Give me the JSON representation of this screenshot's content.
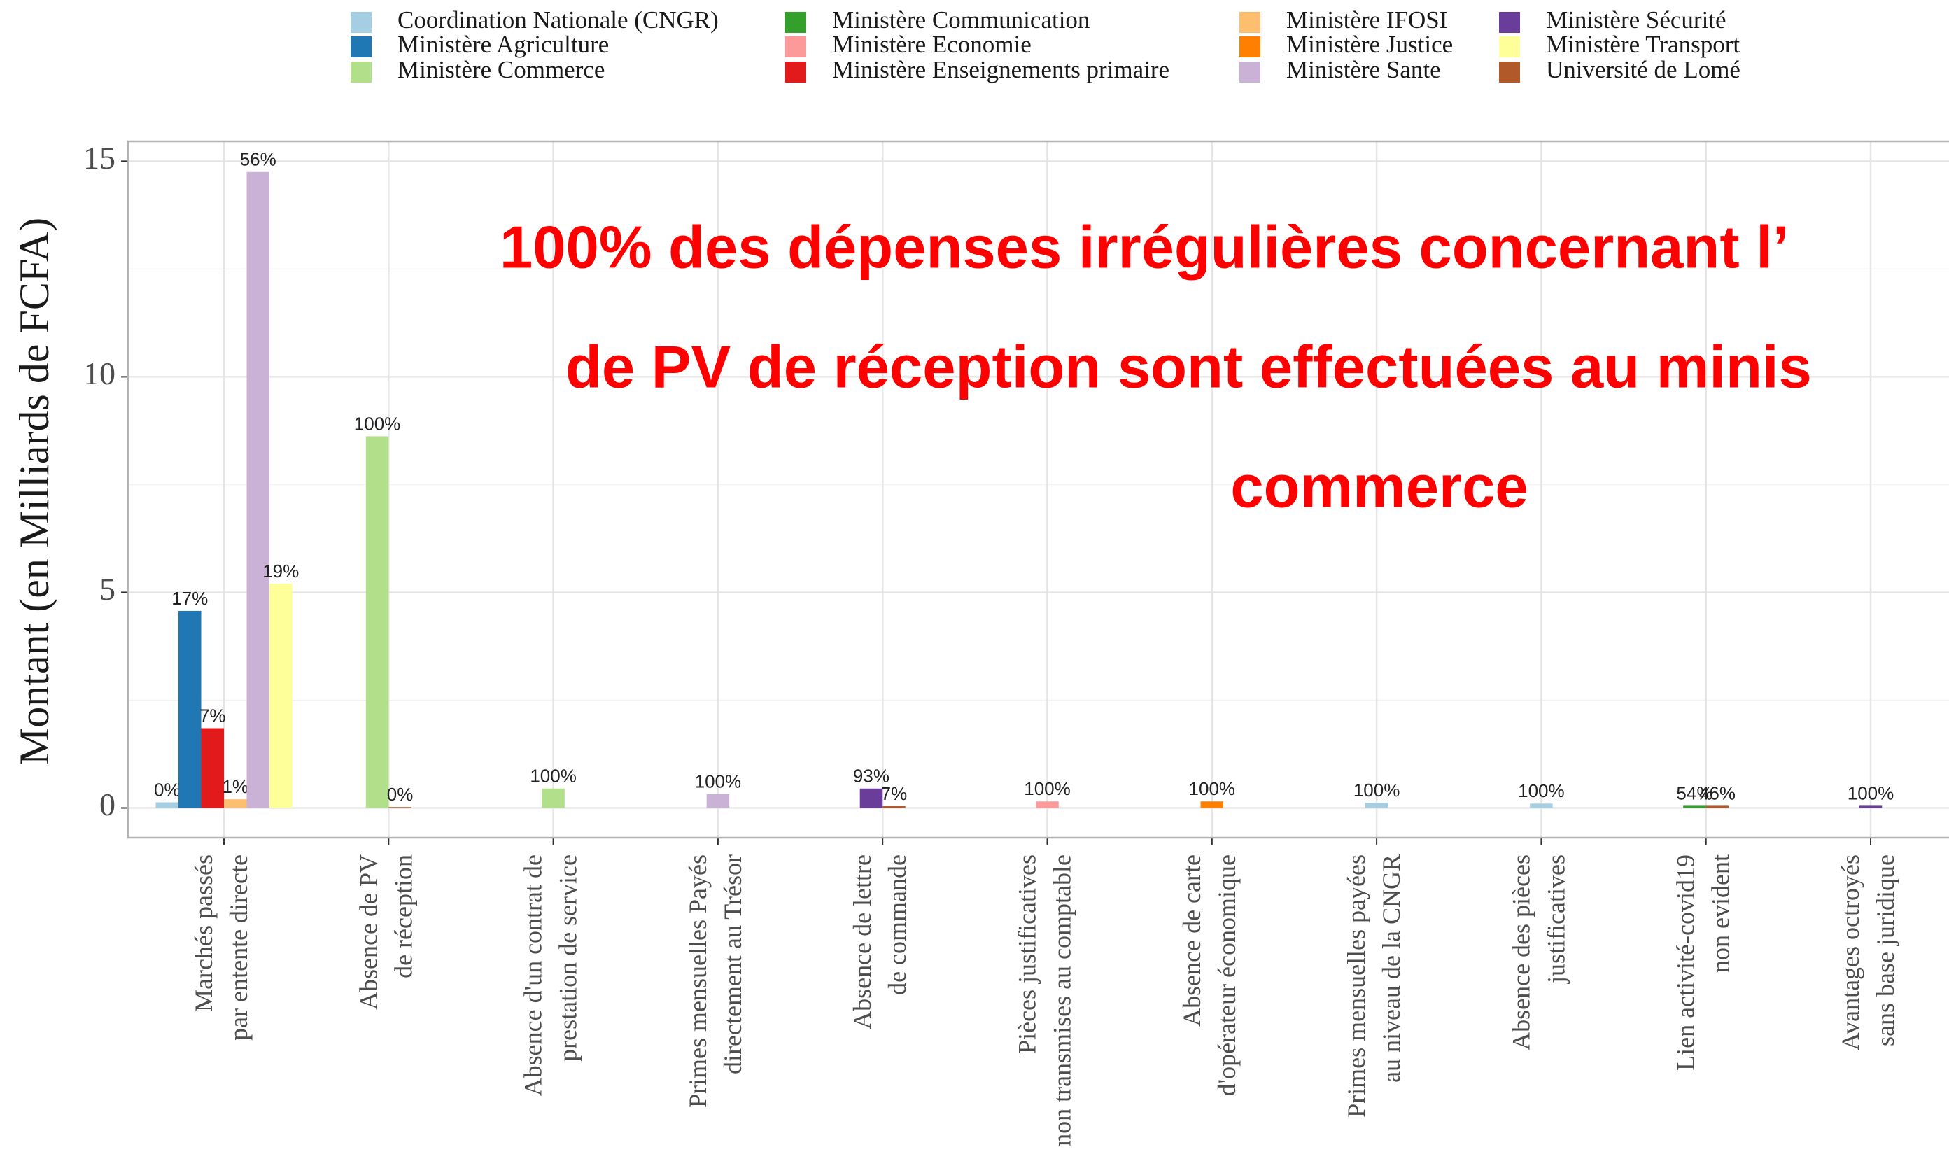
{
  "chart_data": {
    "type": "bar",
    "y_label": "Montant (en Milliards de FCFA)",
    "annotation": [
      "100% des dépenses irrégulières concernant l’",
      "de PV de réception sont effectuées au minis",
      "commerce"
    ],
    "categories": [
      [
        "Marchés passés",
        "par entente directe"
      ],
      [
        "Absence de PV",
        "de réception"
      ],
      [
        "Absence d'un contrat de",
        "prestation de service"
      ],
      [
        "Primes mensuelles Payés",
        "directement au Trésor"
      ],
      [
        "Absence de lettre",
        "de commande"
      ],
      [
        "Pièces justificatives",
        "non transmises au comptable"
      ],
      [
        "Absence de carte",
        "d'opérateur économique"
      ],
      [
        "Primes mensuelles payées",
        "au niveau de la CNGR"
      ],
      [
        "Absence des pièces",
        "justificatives"
      ],
      [
        "Lien activité-covid19",
        "non evident"
      ],
      [
        "Avantages octroyés",
        "sans base juridique"
      ]
    ],
    "series": [
      {
        "name": "Coordination Nationale (CNGR)",
        "color": "#a6cee3",
        "values": [
          0.13,
          null,
          null,
          null,
          null,
          null,
          null,
          0.12,
          0.1,
          null,
          null
        ],
        "value_labels": [
          "0%",
          null,
          null,
          null,
          null,
          null,
          null,
          "100%",
          "100%",
          null,
          null
        ]
      },
      {
        "name": "Ministère Agriculture",
        "color": "#1f78b4",
        "values": [
          4.57,
          null,
          null,
          null,
          null,
          null,
          null,
          null,
          null,
          null,
          null
        ],
        "value_labels": [
          "17%",
          null,
          null,
          null,
          null,
          null,
          null,
          null,
          null,
          null,
          null
        ]
      },
      {
        "name": "Ministère Commerce",
        "color": "#b2df8a",
        "values": [
          null,
          8.62,
          0.45,
          null,
          null,
          null,
          null,
          null,
          null,
          null,
          null
        ],
        "value_labels": [
          null,
          "100%",
          "100%",
          null,
          null,
          null,
          null,
          null,
          null,
          null,
          null
        ]
      },
      {
        "name": "Ministère Communication",
        "color": "#33a02c",
        "values": [
          null,
          null,
          null,
          null,
          null,
          null,
          null,
          null,
          null,
          0.05,
          null
        ],
        "value_labels": [
          null,
          null,
          null,
          null,
          null,
          null,
          null,
          null,
          null,
          "54%",
          null
        ]
      },
      {
        "name": "Ministère Economie",
        "color": "#fb9a99",
        "values": [
          null,
          null,
          null,
          null,
          null,
          0.15,
          null,
          null,
          null,
          null,
          null
        ],
        "value_labels": [
          null,
          null,
          null,
          null,
          null,
          "100%",
          null,
          null,
          null,
          null,
          null
        ]
      },
      {
        "name": "Ministère Enseignements primaire",
        "color": "#e31a1c",
        "values": [
          1.85,
          null,
          null,
          null,
          null,
          null,
          null,
          null,
          null,
          null,
          null
        ],
        "value_labels": [
          "7%",
          null,
          null,
          null,
          null,
          null,
          null,
          null,
          null,
          null,
          null
        ]
      },
      {
        "name": "Ministère IFOSI",
        "color": "#fdbf6f",
        "values": [
          0.2,
          null,
          null,
          null,
          null,
          null,
          null,
          null,
          null,
          null,
          null
        ],
        "value_labels": [
          "1%",
          null,
          null,
          null,
          null,
          null,
          null,
          null,
          null,
          null,
          null
        ]
      },
      {
        "name": "Ministère Justice",
        "color": "#ff7f00",
        "values": [
          null,
          null,
          null,
          null,
          null,
          null,
          0.15,
          null,
          null,
          null,
          null
        ],
        "value_labels": [
          null,
          null,
          null,
          null,
          null,
          null,
          "100%",
          null,
          null,
          null,
          null
        ]
      },
      {
        "name": "Ministère Sante",
        "color": "#cab2d6",
        "values": [
          14.75,
          null,
          null,
          0.32,
          null,
          null,
          null,
          null,
          null,
          null,
          null
        ],
        "value_labels": [
          "56%",
          null,
          null,
          "100%",
          null,
          null,
          null,
          null,
          null,
          null,
          null
        ]
      },
      {
        "name": "Ministère Sécurité",
        "color": "#6a3d9a",
        "values": [
          null,
          null,
          null,
          null,
          0.45,
          null,
          null,
          null,
          null,
          null,
          0.05
        ],
        "value_labels": [
          null,
          null,
          null,
          null,
          "93%",
          null,
          null,
          null,
          null,
          null,
          "100%"
        ]
      },
      {
        "name": "Ministère Transport",
        "color": "#ffff99",
        "values": [
          5.2,
          null,
          null,
          null,
          null,
          null,
          null,
          null,
          null,
          null,
          null
        ],
        "value_labels": [
          "19%",
          null,
          null,
          null,
          null,
          null,
          null,
          null,
          null,
          null,
          null
        ]
      },
      {
        "name": "Université de Lomé",
        "color": "#b15928",
        "values": [
          null,
          0.02,
          null,
          null,
          0.04,
          null,
          null,
          null,
          null,
          0.05,
          null
        ],
        "value_labels": [
          null,
          "0%",
          null,
          null,
          "7%",
          null,
          null,
          null,
          null,
          "46%",
          null
        ]
      }
    ],
    "ylim": [
      -0.69,
      15.46
    ],
    "yticks": [
      0,
      5,
      10,
      15
    ],
    "grid": true,
    "legend": "top"
  }
}
